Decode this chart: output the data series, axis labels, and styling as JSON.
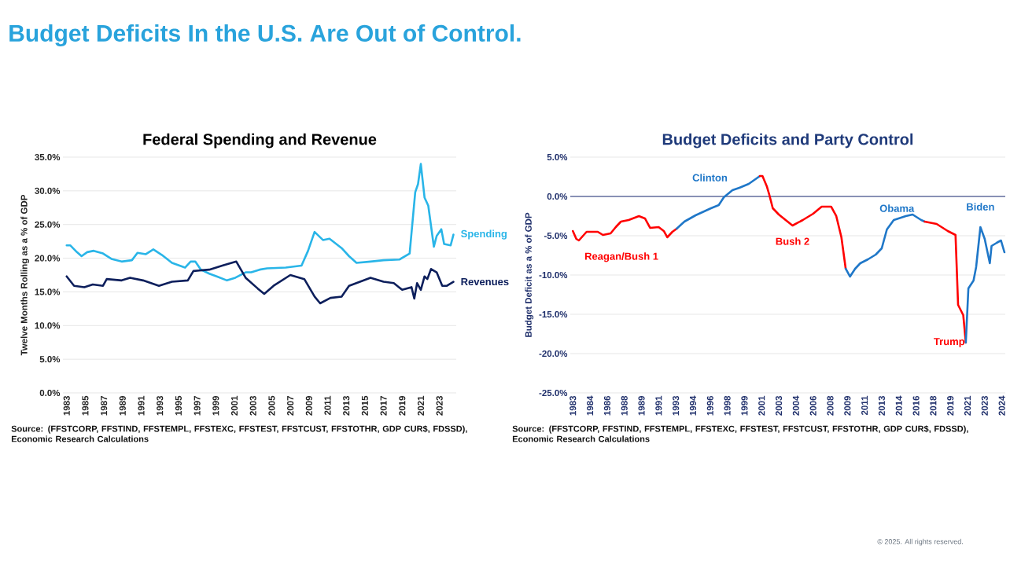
{
  "chart_data": [
    {
      "type": "other",
      "title": "Budget Deficits In the U.S. Are Out of Control.",
      "annotations": [
        "© 2025. All rights reserved."
      ]
    },
    {
      "type": "line",
      "title": "Federal Spending and Revenue",
      "ylabel": "Twelve Months Rolling as a % of GDP",
      "xlim": [
        1982.6,
        2024.8
      ],
      "xticks": [
        1983,
        1985,
        1987,
        1989,
        1991,
        1993,
        1995,
        1997,
        1999,
        2001,
        2003,
        2005,
        2007,
        2009,
        2011,
        2013,
        2015,
        2017,
        2019,
        2021,
        2023
      ],
      "ylim": [
        0,
        35
      ],
      "yticks": [
        {
          "value": 0,
          "label": "0.0%"
        },
        {
          "value": 5,
          "label": "5.0%"
        },
        {
          "value": 10,
          "label": "10.0%"
        },
        {
          "value": 15,
          "label": "15.0%"
        },
        {
          "value": 20,
          "label": "20.0%"
        },
        {
          "value": 25,
          "label": "25.0%"
        },
        {
          "value": 30,
          "label": "30.0%"
        },
        {
          "value": 35,
          "label": "35.0%"
        }
      ],
      "grid": "y",
      "series": [
        {
          "name": "Spending",
          "color": "#29b5e8",
          "x": [
            1983,
            1983.4,
            1984.1,
            1984.6,
            1985.2,
            1985.9,
            1986.9,
            1987.8,
            1988.9,
            1990.0,
            1990.6,
            1991.5,
            1992.3,
            1993.2,
            1994.3,
            1995.7,
            1996.3,
            1996.8,
            1997.4,
            1998.3,
            1999.1,
            2000.2,
            2001.1,
            2002.2,
            2002.8,
            2003.7,
            2004.5,
            2006.5,
            2008.2,
            2008.9,
            2009.6,
            2010.5,
            2011.2,
            2012.5,
            2013.3,
            2014.1,
            2015.6,
            2017.0,
            2018.7,
            2019.8,
            2020.4,
            2020.7,
            2021.0,
            2021.4,
            2021.8,
            2022.4,
            2022.7,
            2023.2,
            2023.5,
            2024.2,
            2024.5
          ],
          "values": [
            21.9,
            21.9,
            20.9,
            20.3,
            20.9,
            21.1,
            20.7,
            19.9,
            19.5,
            19.7,
            20.8,
            20.6,
            21.3,
            20.5,
            19.3,
            18.6,
            19.5,
            19.5,
            18.3,
            17.7,
            17.3,
            16.7,
            17.1,
            17.9,
            17.9,
            18.3,
            18.5,
            18.6,
            18.9,
            21.1,
            23.9,
            22.7,
            22.9,
            21.5,
            20.3,
            19.3,
            19.5,
            19.7,
            19.8,
            20.7,
            29.8,
            31.0,
            34.0,
            29.0,
            27.8,
            21.7,
            23.3,
            24.3,
            22.1,
            21.9,
            23.5
          ]
        },
        {
          "name": "Revenues",
          "color": "#0d1f5c",
          "x": [
            1983,
            1983.8,
            1984.9,
            1985.8,
            1986.9,
            1987.3,
            1988.9,
            1989.8,
            1991.2,
            1992.9,
            1994.3,
            1996.0,
            1996.6,
            1998.3,
            1999.7,
            2001.2,
            2002.2,
            2003.5,
            2004.2,
            2005.2,
            2007.0,
            2008.5,
            2009.6,
            2010.2,
            2011.3,
            2012.5,
            2013.3,
            2015.6,
            2017.0,
            2018.1,
            2019.0,
            2020.0,
            2020.3,
            2020.6,
            2021.0,
            2021.4,
            2021.7,
            2022.1,
            2022.7,
            2023.3,
            2023.8,
            2024.5
          ],
          "values": [
            17.3,
            15.9,
            15.7,
            16.1,
            15.9,
            16.9,
            16.7,
            17.1,
            16.7,
            15.9,
            16.5,
            16.7,
            18.1,
            18.3,
            18.9,
            19.5,
            17.1,
            15.5,
            14.7,
            15.9,
            17.5,
            16.9,
            14.3,
            13.3,
            14.1,
            14.3,
            15.9,
            17.1,
            16.5,
            16.3,
            15.3,
            15.7,
            14.0,
            16.3,
            15.3,
            17.3,
            16.9,
            18.4,
            17.9,
            15.9,
            15.9,
            16.5
          ]
        }
      ],
      "annotations": [
        "Source: (FFSTCORP, FFSTIND, FFSTEMPL, FFSTEXC, FFSTEST, FFSTCUST, FFSTOTHR, GDP CUR$, FDSSD), Economic Research Calculations"
      ]
    },
    {
      "type": "line",
      "title": "Budget Deficits and Party Control",
      "ylabel": "Budget Deficit as a % of GDP",
      "xlim": [
        "1982-10",
        "2025-01"
      ],
      "xticks": [
        {
          "value": "1983-01",
          "label": "1983"
        },
        {
          "value": "1984-09",
          "label": "1984"
        },
        {
          "value": "1986-05",
          "label": "1986"
        },
        {
          "value": "1988-01",
          "label": "1988"
        },
        {
          "value": "1989-09",
          "label": "1989"
        },
        {
          "value": "1991-05",
          "label": "1991"
        },
        {
          "value": "1993-01",
          "label": "1993"
        },
        {
          "value": "1994-09",
          "label": "1994"
        },
        {
          "value": "1996-05",
          "label": "1996"
        },
        {
          "value": "1998-01",
          "label": "1998"
        },
        {
          "value": "1999-09",
          "label": "1999"
        },
        {
          "value": "2001-05",
          "label": "2001"
        },
        {
          "value": "2003-01",
          "label": "2003"
        },
        {
          "value": "2004-09",
          "label": "2004"
        },
        {
          "value": "2006-05",
          "label": "2006"
        },
        {
          "value": "2008-01",
          "label": "2008"
        },
        {
          "value": "2009-09",
          "label": "2009"
        },
        {
          "value": "2011-05",
          "label": "2011"
        },
        {
          "value": "2013-01",
          "label": "2013"
        },
        {
          "value": "2014-09",
          "label": "2014"
        },
        {
          "value": "2016-05",
          "label": "2016"
        },
        {
          "value": "2018-01",
          "label": "2018"
        },
        {
          "value": "2019-09",
          "label": "2019"
        },
        {
          "value": "2021-05",
          "label": "2021"
        },
        {
          "value": "2023-01",
          "label": "2023"
        },
        {
          "value": "2024-09",
          "label": "2024"
        }
      ],
      "ref_lines": [
        {
          "axis": "y",
          "value": 0,
          "color": "#6670a0"
        }
      ],
      "ylim": [
        -25,
        5
      ],
      "yticks": [
        {
          "value": -25,
          "label": "-25.0%"
        },
        {
          "value": -20,
          "label": "-20.0%"
        },
        {
          "value": -15,
          "label": "-15.0%"
        },
        {
          "value": -10,
          "label": "-10.0%"
        },
        {
          "value": -5,
          "label": "-5.0%"
        },
        {
          "value": 0,
          "label": "0.0%"
        },
        {
          "value": 5,
          "label": "5.0%"
        }
      ],
      "grid": "y",
      "series": [
        {
          "name": "Reagan/Bush 1",
          "color": "#ff0000",
          "x": [
            "1983-01",
            "1983-05",
            "1983-08",
            "1984-05",
            "1985-06",
            "1985-12",
            "1986-09",
            "1987-03",
            "1987-09",
            "1988-06",
            "1989-06",
            "1990-01",
            "1990-07",
            "1991-05",
            "1991-11",
            "1992-03",
            "1992-09",
            "1993-02"
          ],
          "values": [
            -4.4,
            -5.4,
            -5.6,
            -4.5,
            -4.5,
            -4.9,
            -4.7,
            -3.9,
            -3.2,
            -3.0,
            -2.5,
            -2.8,
            -4.0,
            -3.9,
            -4.4,
            -5.2,
            -4.5,
            -4.1
          ]
        },
        {
          "name": "Clinton",
          "color": "#1f77c8",
          "x": [
            "1993-02",
            "1993-11",
            "1994-12",
            "1996-06",
            "1997-03",
            "1997-09",
            "1998-07",
            "1999-03",
            "2000-02",
            "2001-03"
          ],
          "values": [
            -4.1,
            -3.2,
            -2.4,
            -1.5,
            -1.1,
            -0.1,
            0.8,
            1.1,
            1.6,
            2.6
          ]
        },
        {
          "name": "Bush 2",
          "color": "#ff0000",
          "x": [
            "2001-03",
            "2001-06",
            "2001-11",
            "2002-02",
            "2002-06",
            "2003-01",
            "2004-05",
            "2005-05",
            "2006-05",
            "2007-03",
            "2008-02",
            "2008-08",
            "2009-02",
            "2009-07"
          ],
          "values": [
            2.6,
            2.6,
            1.3,
            0.2,
            -1.5,
            -2.3,
            -3.7,
            -3.0,
            -2.2,
            -1.3,
            -1.3,
            -2.5,
            -5.2,
            -9.2
          ]
        },
        {
          "name": "Obama",
          "color": "#1f77c8",
          "x": [
            "2009-07",
            "2009-12",
            "2010-06",
            "2010-12",
            "2011-09",
            "2012-06",
            "2013-01",
            "2013-07",
            "2014-03",
            "2015-05",
            "2016-01",
            "2016-11",
            "2017-03"
          ],
          "values": [
            -9.2,
            -10.2,
            -9.2,
            -8.5,
            -8.0,
            -7.4,
            -6.6,
            -4.2,
            -3.0,
            -2.5,
            -2.3,
            -3.0,
            -3.2
          ]
        },
        {
          "name": "Trump",
          "color": "#ff0000",
          "x": [
            "2017-03",
            "2018-05",
            "2019-06",
            "2020-03",
            "2020-06",
            "2020-12",
            "2021-03"
          ],
          "values": [
            -3.2,
            -3.5,
            -4.4,
            -4.9,
            -13.8,
            -15.1,
            -18.6
          ]
        },
        {
          "name": "Biden",
          "color": "#1f77c8",
          "x": [
            "2021-03",
            "2021-06",
            "2021-12",
            "2022-03",
            "2022-08",
            "2023-01",
            "2023-07",
            "2023-09",
            "2024-03",
            "2024-08",
            "2024-12"
          ],
          "values": [
            -18.6,
            -11.7,
            -10.7,
            -9.0,
            -3.9,
            -5.4,
            -8.5,
            -6.3,
            -5.9,
            -5.6,
            -7.1
          ]
        }
      ],
      "annotations": [
        "Source: (FFSTCORP, FFSTIND, FFSTEMPL, FFSTEXC, FFSTEST, FFSTCUST, FFSTOTHR, GDP CUR$, FDSSD), Economic Research Calculations"
      ]
    }
  ]
}
